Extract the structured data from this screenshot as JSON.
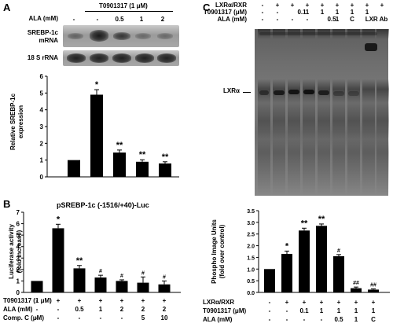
{
  "panels": {
    "a": {
      "letter": "A",
      "treatment_header": "T0901317 (1 μM)",
      "ala_label": "ALA (mM)",
      "ala_values": [
        "-",
        "-",
        "0.5",
        "1",
        "2"
      ],
      "blot_labels": {
        "mrna_line1": "SREBP-1c",
        "mrna_line2": "mRNA",
        "rrna": "18 S rRNA"
      },
      "ylabel_line1": "Relative SREBP-1c",
      "ylabel_line2": "expression"
    },
    "b": {
      "letter": "B",
      "title": "pSREBP-1c (-1516/+40)-Luc",
      "ylabel_line1": "Luciferase activity",
      "ylabel_line2": "(fold increase)",
      "rows": [
        {
          "label": "T0901317 (1 μM)",
          "values": [
            "-",
            "+",
            "+",
            "+",
            "+",
            "+",
            "+"
          ]
        },
        {
          "label": "ALA (mM)",
          "values": [
            "-",
            "-",
            "0.5",
            "1",
            "2",
            "2",
            "2"
          ]
        },
        {
          "label": "Comp. C (μM)",
          "values": [
            "-",
            "-",
            "-",
            "-",
            "-",
            "5",
            "10"
          ]
        }
      ]
    },
    "c": {
      "letter": "C",
      "rows": [
        {
          "label": "LXRα/RXR",
          "values": [
            "-",
            "+",
            "+",
            "+",
            "+",
            "+",
            "+",
            "+",
            "+"
          ]
        },
        {
          "label": "T0901317 (μM)",
          "values": [
            "-",
            "-",
            "0.1",
            "1",
            "1",
            "1",
            "1",
            "1",
            ""
          ]
        },
        {
          "label": "ALA (mM)",
          "values": [
            "-",
            "-",
            "-",
            "-",
            "0.5",
            "1",
            "C",
            "LXR Ab",
            ""
          ]
        }
      ],
      "band_label": "LXRα",
      "ylabel_line1": "Phospho Image Units",
      "ylabel_line2": "(fold over control)",
      "bottom_rows": [
        {
          "label": "LXRα/RXR",
          "values": [
            "-",
            "+",
            "+",
            "+",
            "+",
            "+",
            "+"
          ]
        },
        {
          "label": "T0901317 (μM)",
          "values": [
            "-",
            "-",
            "0.1",
            "1",
            "1",
            "1",
            "1"
          ]
        },
        {
          "label": "ALA (mM)",
          "values": [
            "-",
            "-",
            "-",
            "-",
            "0.5",
            "1",
            "C"
          ]
        }
      ]
    }
  },
  "chart_data": [
    {
      "type": "bar",
      "panel": "A",
      "categories": [
        "-",
        "-",
        "0.5",
        "1",
        "2"
      ],
      "values": [
        1.0,
        4.9,
        1.45,
        0.9,
        0.8
      ],
      "errors": [
        0,
        0.3,
        0.15,
        0.12,
        0.1
      ],
      "significance": [
        "",
        "*",
        "**",
        "**",
        "**"
      ],
      "ylabel": "Relative SREBP-1c expression",
      "ylim": [
        0,
        6
      ],
      "yticks": [
        "0",
        "1",
        "2",
        "3",
        "4",
        "5",
        "6"
      ]
    },
    {
      "type": "bar",
      "panel": "B",
      "title": "pSREBP-1c (-1516/+40)-Luc",
      "categories": [
        "1",
        "2",
        "3",
        "4",
        "5",
        "6",
        "7"
      ],
      "values": [
        1.0,
        5.6,
        2.1,
        1.3,
        1.0,
        0.85,
        0.7
      ],
      "errors": [
        0,
        0.35,
        0.25,
        0.2,
        0.1,
        0.5,
        0.3
      ],
      "significance": [
        "",
        "*",
        "**",
        "#",
        "#",
        "#",
        "#"
      ],
      "ylabel": "Luciferase activity (fold increase)",
      "ylim": [
        0,
        7
      ],
      "yticks": [
        "0",
        "1",
        "2",
        "3",
        "4",
        "5",
        "6",
        "7"
      ]
    },
    {
      "type": "bar",
      "panel": "C",
      "categories": [
        "1",
        "2",
        "3",
        "4",
        "5",
        "6",
        "7"
      ],
      "values": [
        1.0,
        1.65,
        2.65,
        2.85,
        1.55,
        0.18,
        0.12
      ],
      "errors": [
        0,
        0.12,
        0.1,
        0.08,
        0.07,
        0.05,
        0.03
      ],
      "significance": [
        "",
        "*",
        "**",
        "**",
        "#",
        "##",
        "##"
      ],
      "ylabel": "Phospho Image Units (fold over control)",
      "ylim": [
        0,
        3.5
      ],
      "yticks": [
        "0.0",
        "0.5",
        "1.0",
        "1.5",
        "2.0",
        "2.5",
        "3.0",
        "3.5"
      ]
    }
  ]
}
